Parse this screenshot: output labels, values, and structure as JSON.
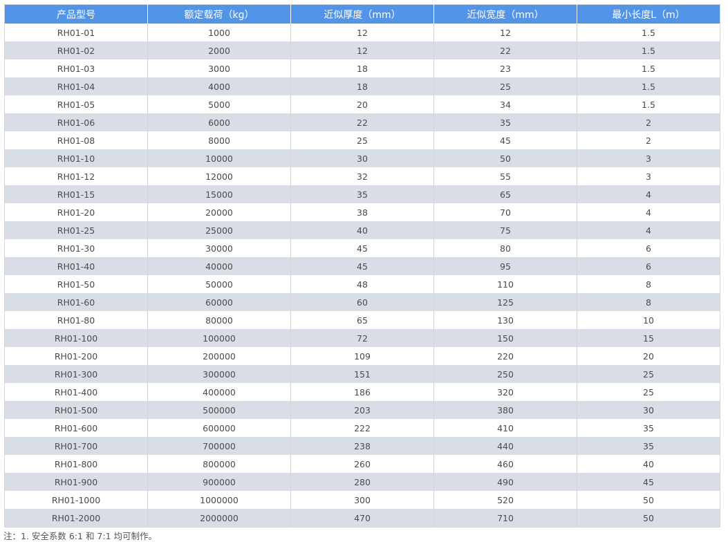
{
  "table": {
    "headers": [
      "产品型号",
      "额定载荷（kg）",
      "近似厚度（mm）",
      "近似宽度（mm）",
      "最小长度L（m）"
    ],
    "rows": [
      [
        "RH01-01",
        "1000",
        "12",
        "12",
        "1.5"
      ],
      [
        "RH01-02",
        "2000",
        "12",
        "22",
        "1.5"
      ],
      [
        "RH01-03",
        "3000",
        "18",
        "23",
        "1.5"
      ],
      [
        "RH01-04",
        "4000",
        "18",
        "25",
        "1.5"
      ],
      [
        "RH01-05",
        "5000",
        "20",
        "34",
        "1.5"
      ],
      [
        "RH01-06",
        "6000",
        "22",
        "35",
        "2"
      ],
      [
        "RH01-08",
        "8000",
        "25",
        "45",
        "2"
      ],
      [
        "RH01-10",
        "10000",
        "30",
        "50",
        "3"
      ],
      [
        "RH01-12",
        "12000",
        "32",
        "55",
        "3"
      ],
      [
        "RH01-15",
        "15000",
        "35",
        "65",
        "4"
      ],
      [
        "RH01-20",
        "20000",
        "38",
        "70",
        "4"
      ],
      [
        "RH01-25",
        "25000",
        "40",
        "75",
        "4"
      ],
      [
        "RH01-30",
        "30000",
        "45",
        "80",
        "6"
      ],
      [
        "RH01-40",
        "40000",
        "45",
        "95",
        "6"
      ],
      [
        "RH01-50",
        "50000",
        "48",
        "110",
        "8"
      ],
      [
        "RH01-60",
        "60000",
        "60",
        "125",
        "8"
      ],
      [
        "RH01-80",
        "80000",
        "65",
        "130",
        "10"
      ],
      [
        "RH01-100",
        "100000",
        "72",
        "150",
        "15"
      ],
      [
        "RH01-200",
        "200000",
        "109",
        "220",
        "20"
      ],
      [
        "RH01-300",
        "300000",
        "151",
        "250",
        "25"
      ],
      [
        "RH01-400",
        "400000",
        "186",
        "320",
        "25"
      ],
      [
        "RH01-500",
        "500000",
        "203",
        "380",
        "30"
      ],
      [
        "RH01-600",
        "600000",
        "222",
        "410",
        "35"
      ],
      [
        "RH01-700",
        "700000",
        "238",
        "440",
        "35"
      ],
      [
        "RH01-800",
        "800000",
        "260",
        "460",
        "40"
      ],
      [
        "RH01-900",
        "900000",
        "280",
        "490",
        "45"
      ],
      [
        "RH01-1000",
        "1000000",
        "300",
        "520",
        "50"
      ],
      [
        "RH01-2000",
        "2000000",
        "470",
        "710",
        "50"
      ]
    ]
  },
  "note": "注：1. 安全系数 6:1 和 7:1 均可制作。",
  "colors": {
    "header_bg": "#5295e8",
    "stripe_bg": "#d9dee6",
    "text": "#4a4a4a"
  }
}
